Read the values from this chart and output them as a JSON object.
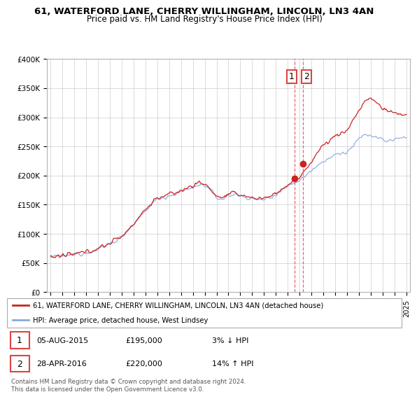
{
  "title": "61, WATERFORD LANE, CHERRY WILLINGHAM, LINCOLN, LN3 4AN",
  "subtitle": "Price paid vs. HM Land Registry's House Price Index (HPI)",
  "sale1_date": "05-AUG-2015",
  "sale1_price": 195000,
  "sale1_hpi_diff": "3% ↓ HPI",
  "sale2_date": "28-APR-2016",
  "sale2_price": 220000,
  "sale2_hpi_diff": "14% ↑ HPI",
  "legend_line1": "61, WATERFORD LANE, CHERRY WILLINGHAM, LINCOLN, LN3 4AN (detached house)",
  "legend_line2": "HPI: Average price, detached house, West Lindsey",
  "footer": "Contains HM Land Registry data © Crown copyright and database right 2024.\nThis data is licensed under the Open Government Licence v3.0.",
  "house_color": "#cc2222",
  "hpi_color": "#88aadd",
  "vline_color": "#dd4444",
  "background_color": "#ffffff",
  "grid_color": "#cccccc",
  "ylim": [
    0,
    400000
  ],
  "yticks": [
    0,
    50000,
    100000,
    150000,
    200000,
    250000,
    300000,
    350000,
    400000
  ],
  "ytick_labels": [
    "£0",
    "£50K",
    "£100K",
    "£150K",
    "£200K",
    "£250K",
    "£300K",
    "£350K",
    "£400K"
  ],
  "sale1_year": 2015.6,
  "sale2_year": 2016.3,
  "xlim_start": 1994.7,
  "xlim_end": 2025.3
}
